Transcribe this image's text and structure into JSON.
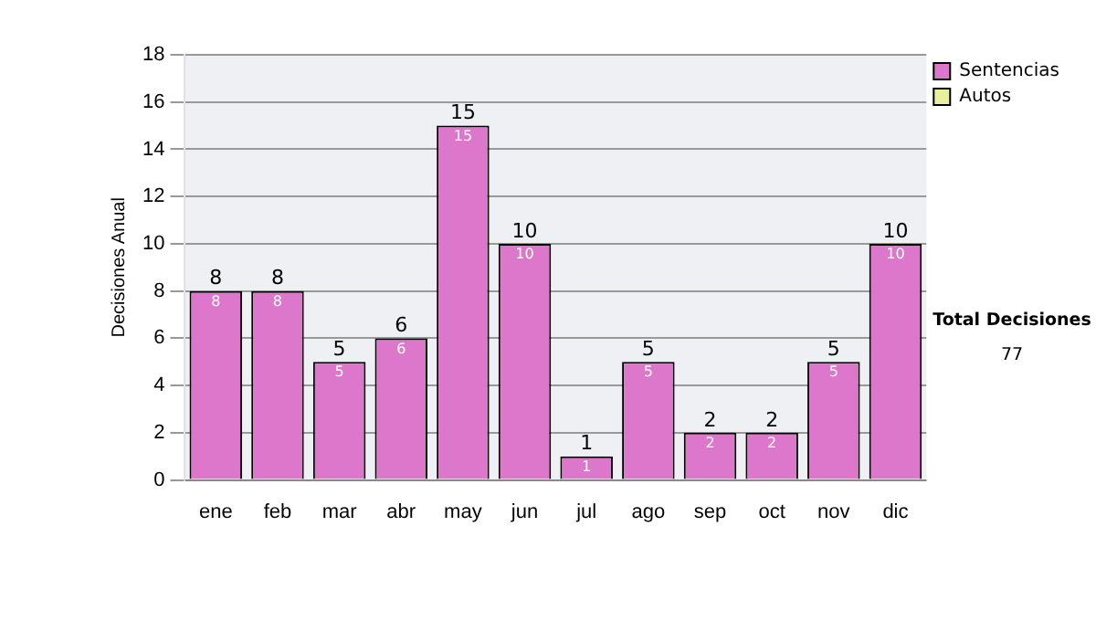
{
  "chart_data": {
    "type": "bar",
    "ylabel": "Decisiones Anual",
    "categories": [
      "ene",
      "feb",
      "mar",
      "abr",
      "may",
      "jun",
      "jul",
      "ago",
      "sep",
      "oct",
      "nov",
      "dic"
    ],
    "series": [
      {
        "name": "Sentencias",
        "color": "#dd77cc",
        "values": [
          8,
          8,
          5,
          6,
          15,
          10,
          1,
          5,
          2,
          2,
          5,
          10
        ]
      },
      {
        "name": "Autos",
        "color": "#e8f0a0",
        "values": [
          null,
          null,
          null,
          null,
          null,
          null,
          null,
          null,
          null,
          null,
          null,
          null
        ]
      }
    ],
    "ylim": [
      0,
      18
    ],
    "yticks": [
      0,
      2,
      4,
      6,
      8,
      10,
      12,
      14,
      16,
      18
    ],
    "grid": "y",
    "legend": "right",
    "data_labels": true,
    "annotations": [
      "Total Decisiones",
      "77",
      {
        "text": "8",
        "x": "ene",
        "y": 8
      },
      {
        "text": "8",
        "x": "feb",
        "y": 8
      },
      {
        "text": "5",
        "x": "mar",
        "y": 5
      },
      {
        "text": "6",
        "x": "abr",
        "y": 6
      },
      {
        "text": "15",
        "x": "may",
        "y": 15
      },
      {
        "text": "10",
        "x": "jun",
        "y": 10
      },
      {
        "text": "1",
        "x": "jul",
        "y": 1
      },
      {
        "text": "5",
        "x": "ago",
        "y": 5
      },
      {
        "text": "2",
        "x": "sep",
        "y": 2
      },
      {
        "text": "2",
        "x": "oct",
        "y": 2
      },
      {
        "text": "5",
        "x": "nov",
        "y": 5
      },
      {
        "text": "10",
        "x": "dic",
        "y": 10
      }
    ]
  }
}
